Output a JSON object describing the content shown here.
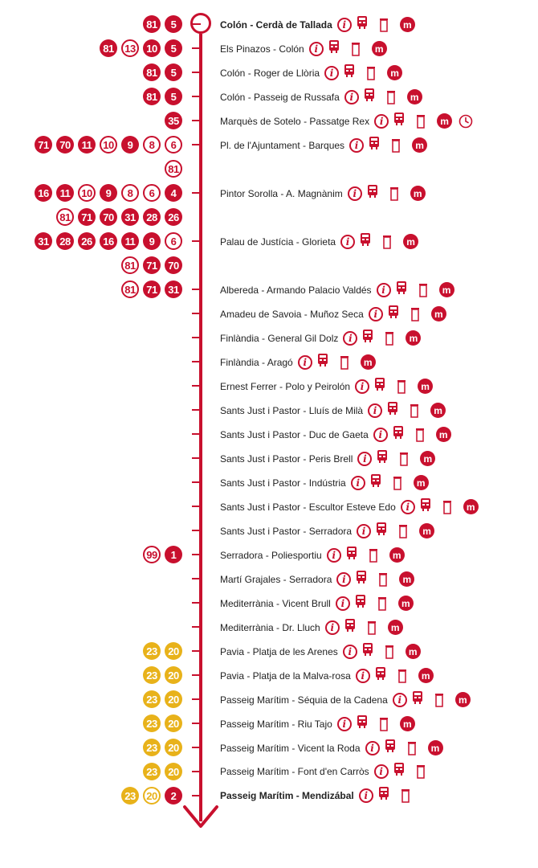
{
  "colors": {
    "red": "#c8102e",
    "yellow": "#e8b21a"
  },
  "icons": {
    "info": "i",
    "metro": "m",
    "info_name": "info-icon",
    "machine_name": "ticket-machine-icon",
    "shelter_name": "bus-shelter-icon",
    "metro_name": "metro-icon",
    "clock_name": "clock-icon"
  },
  "rows": [
    {
      "badges": [
        {
          "n": "5",
          "s": "red-solid"
        },
        {
          "n": "81",
          "s": "red-solid"
        }
      ],
      "stop": "Colón - Cerdà de Tallada",
      "bold": true,
      "icons": [
        "info",
        "machine",
        "shelter",
        "metro"
      ]
    },
    {
      "badges": [
        {
          "n": "5",
          "s": "red-solid"
        },
        {
          "n": "10",
          "s": "red-solid"
        },
        {
          "n": "13",
          "s": "red-outline"
        },
        {
          "n": "81",
          "s": "red-solid"
        }
      ],
      "stop": "Els Pinazos - Colón",
      "icons": [
        "info",
        "machine",
        "shelter",
        "metro"
      ]
    },
    {
      "badges": [
        {
          "n": "5",
          "s": "red-solid"
        },
        {
          "n": "81",
          "s": "red-solid"
        }
      ],
      "stop": "Colón - Roger de Llòria",
      "icons": [
        "info",
        "machine",
        "shelter",
        "metro"
      ]
    },
    {
      "badges": [
        {
          "n": "5",
          "s": "red-solid"
        },
        {
          "n": "81",
          "s": "red-solid"
        }
      ],
      "stop": "Colón - Passeig de Russafa",
      "icons": [
        "info",
        "machine",
        "shelter",
        "metro"
      ]
    },
    {
      "badges": [
        {
          "n": "35",
          "s": "red-solid"
        }
      ],
      "stop": "Marquès de Sotelo - Passatge Rex",
      "icons": [
        "info",
        "machine",
        "shelter",
        "metro",
        "clock"
      ]
    },
    {
      "badges": [
        {
          "n": "6",
          "s": "red-outline"
        },
        {
          "n": "8",
          "s": "red-outline"
        },
        {
          "n": "9",
          "s": "red-solid"
        },
        {
          "n": "10",
          "s": "red-outline"
        },
        {
          "n": "11",
          "s": "red-solid"
        },
        {
          "n": "70",
          "s": "red-solid"
        },
        {
          "n": "71",
          "s": "red-solid"
        }
      ],
      "stop": "Pl. de l'Ajuntament - Barques",
      "icons": [
        "info",
        "machine",
        "shelter",
        "metro"
      ]
    },
    {
      "badges": [
        {
          "n": "81",
          "s": "red-outline"
        }
      ]
    },
    {
      "badges": [
        {
          "n": "4",
          "s": "red-solid"
        },
        {
          "n": "6",
          "s": "red-outline"
        },
        {
          "n": "8",
          "s": "red-outline"
        },
        {
          "n": "9",
          "s": "red-solid"
        },
        {
          "n": "10",
          "s": "red-outline"
        },
        {
          "n": "11",
          "s": "red-solid"
        },
        {
          "n": "16",
          "s": "red-solid"
        }
      ],
      "stop": "Pintor Sorolla - A. Magnànim",
      "icons": [
        "info",
        "machine",
        "shelter",
        "metro"
      ]
    },
    {
      "badges": [
        {
          "n": "26",
          "s": "red-solid"
        },
        {
          "n": "28",
          "s": "red-solid"
        },
        {
          "n": "31",
          "s": "red-solid"
        },
        {
          "n": "70",
          "s": "red-solid"
        },
        {
          "n": "71",
          "s": "red-solid"
        },
        {
          "n": "81",
          "s": "red-outline"
        }
      ]
    },
    {
      "badges": [
        {
          "n": "6",
          "s": "red-outline"
        },
        {
          "n": "9",
          "s": "red-solid"
        },
        {
          "n": "11",
          "s": "red-solid"
        },
        {
          "n": "16",
          "s": "red-solid"
        },
        {
          "n": "26",
          "s": "red-solid"
        },
        {
          "n": "28",
          "s": "red-solid"
        },
        {
          "n": "31",
          "s": "red-solid"
        }
      ],
      "stop": "Palau de Justícia - Glorieta",
      "icons": [
        "info",
        "machine",
        "shelter",
        "metro"
      ]
    },
    {
      "badges": [
        {
          "n": "70",
          "s": "red-solid"
        },
        {
          "n": "71",
          "s": "red-solid"
        },
        {
          "n": "81",
          "s": "red-outline"
        }
      ]
    },
    {
      "badges": [
        {
          "n": "31",
          "s": "red-solid"
        },
        {
          "n": "71",
          "s": "red-solid"
        },
        {
          "n": "81",
          "s": "red-outline"
        }
      ],
      "stop": "Albereda - Armando Palacio Valdés",
      "icons": [
        "info",
        "machine",
        "shelter",
        "metro"
      ]
    },
    {
      "badges": [],
      "stop": "Amadeu de Savoia - Muñoz Seca",
      "icons": [
        "info",
        "machine",
        "shelter",
        "metro"
      ]
    },
    {
      "badges": [],
      "stop": "Finlàndia - General Gil Dolz",
      "icons": [
        "info",
        "machine",
        "shelter",
        "metro"
      ]
    },
    {
      "badges": [],
      "stop": "Finlàndia - Aragó",
      "icons": [
        "info",
        "machine",
        "shelter",
        "metro"
      ]
    },
    {
      "badges": [],
      "stop": "Ernest Ferrer - Polo y Peirolón",
      "icons": [
        "info",
        "machine",
        "shelter",
        "metro"
      ]
    },
    {
      "badges": [],
      "stop": "Sants Just i Pastor - Lluís de Milà",
      "icons": [
        "info",
        "machine",
        "shelter",
        "metro"
      ]
    },
    {
      "badges": [],
      "stop": "Sants Just i Pastor - Duc de Gaeta",
      "icons": [
        "info",
        "machine",
        "shelter",
        "metro"
      ]
    },
    {
      "badges": [],
      "stop": "Sants Just i Pastor - Peris Brell",
      "icons": [
        "info",
        "machine",
        "shelter",
        "metro"
      ]
    },
    {
      "badges": [],
      "stop": "Sants Just i Pastor - Indústria",
      "icons": [
        "info",
        "machine",
        "shelter",
        "metro"
      ]
    },
    {
      "badges": [],
      "stop": "Sants Just i Pastor - Escultor Esteve Edo",
      "icons": [
        "info",
        "machine",
        "shelter",
        "metro"
      ]
    },
    {
      "badges": [],
      "stop": "Sants Just i Pastor - Serradora",
      "icons": [
        "info",
        "machine",
        "shelter",
        "metro"
      ]
    },
    {
      "badges": [
        {
          "n": "1",
          "s": "red-solid"
        },
        {
          "n": "99",
          "s": "red-outline"
        }
      ],
      "stop": "Serradora - Poliesportiu",
      "icons": [
        "info",
        "machine",
        "shelter",
        "metro"
      ]
    },
    {
      "badges": [],
      "stop": "Martí Grajales - Serradora",
      "icons": [
        "info",
        "machine",
        "shelter",
        "metro"
      ]
    },
    {
      "badges": [],
      "stop": "Mediterrània - Vicent Brull",
      "icons": [
        "info",
        "machine",
        "shelter",
        "metro"
      ]
    },
    {
      "badges": [],
      "stop": "Mediterrània - Dr. Lluch",
      "icons": [
        "info",
        "machine",
        "shelter",
        "metro"
      ]
    },
    {
      "badges": [
        {
          "n": "20",
          "s": "yellow-solid"
        },
        {
          "n": "23",
          "s": "yellow-solid"
        }
      ],
      "stop": "Pavia - Platja de les Arenes",
      "icons": [
        "info",
        "machine",
        "shelter",
        "metro"
      ]
    },
    {
      "badges": [
        {
          "n": "20",
          "s": "yellow-solid"
        },
        {
          "n": "23",
          "s": "yellow-solid"
        }
      ],
      "stop": "Pavia - Platja de la Malva-rosa",
      "icons": [
        "info",
        "machine",
        "shelter",
        "metro"
      ]
    },
    {
      "badges": [
        {
          "n": "20",
          "s": "yellow-solid"
        },
        {
          "n": "23",
          "s": "yellow-solid"
        }
      ],
      "stop": "Passeig Marítim - Séquia de la Cadena",
      "icons": [
        "info",
        "machine",
        "shelter",
        "metro"
      ]
    },
    {
      "badges": [
        {
          "n": "20",
          "s": "yellow-solid"
        },
        {
          "n": "23",
          "s": "yellow-solid"
        }
      ],
      "stop": "Passeig Marítim - Riu Tajo",
      "icons": [
        "info",
        "machine",
        "shelter",
        "metro"
      ]
    },
    {
      "badges": [
        {
          "n": "20",
          "s": "yellow-solid"
        },
        {
          "n": "23",
          "s": "yellow-solid"
        }
      ],
      "stop": "Passeig Marítim - Vicent la Roda",
      "icons": [
        "info",
        "machine",
        "shelter",
        "metro"
      ]
    },
    {
      "badges": [
        {
          "n": "20",
          "s": "yellow-solid"
        },
        {
          "n": "23",
          "s": "yellow-solid"
        }
      ],
      "stop": "Passeig Marítim - Font d'en Carròs",
      "icons": [
        "info",
        "machine",
        "shelter"
      ]
    },
    {
      "badges": [
        {
          "n": "2",
          "s": "red-solid"
        },
        {
          "n": "20",
          "s": "yellow-outline"
        },
        {
          "n": "23",
          "s": "yellow-solid"
        }
      ],
      "stop": "Passeig Marítim - Mendizábal",
      "bold": true,
      "icons": [
        "info",
        "machine",
        "shelter"
      ]
    }
  ]
}
